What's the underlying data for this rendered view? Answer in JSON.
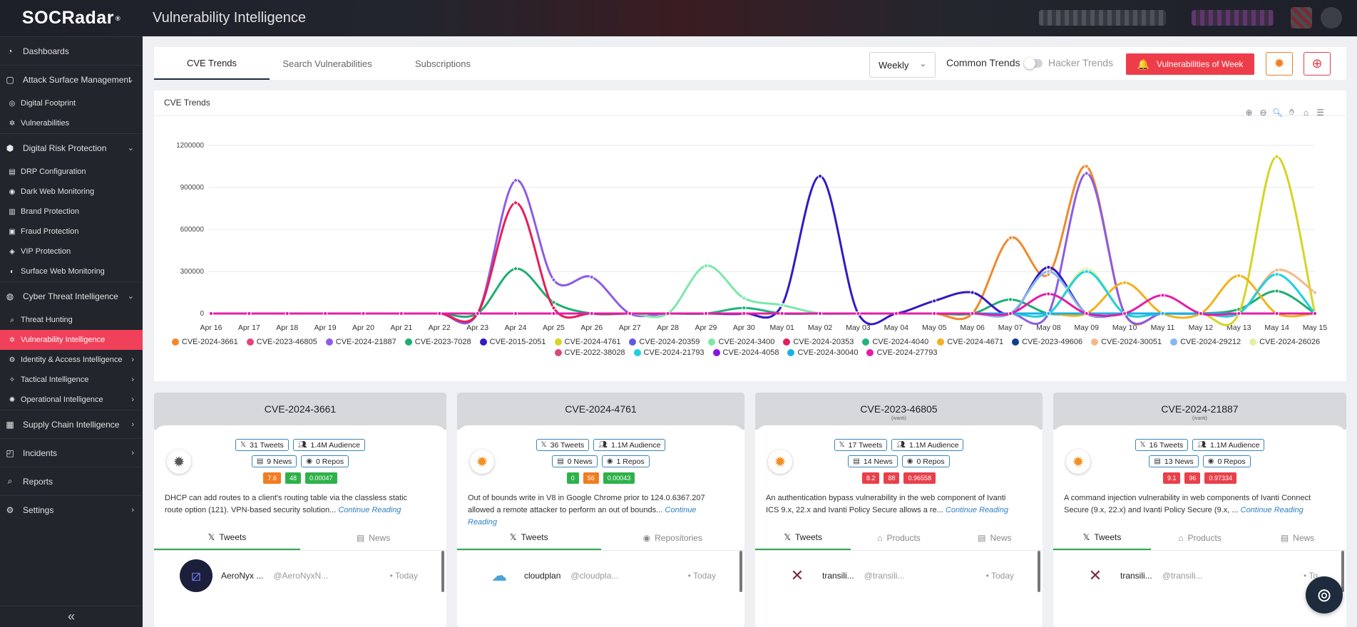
{
  "app": {
    "logo": "SOCRadar",
    "logo_mark": "®",
    "title": "Vulnerability Intelligence"
  },
  "sidebar": {
    "items": [
      {
        "label": "Dashboards",
        "icon": "dashboard-icon",
        "type": "top",
        "chevron": ""
      },
      {
        "label": "Attack Surface Management",
        "icon": "attack-surface-icon",
        "type": "top",
        "chevron": "⌄"
      },
      {
        "label": "Digital Footprint",
        "icon": "globe-icon",
        "type": "sub",
        "chevron": ""
      },
      {
        "label": "Vulnerabilities",
        "icon": "bug-icon",
        "type": "sub",
        "chevron": ""
      },
      {
        "label": "Digital Risk Protection",
        "icon": "risk-icon",
        "type": "top",
        "chevron": "⌄"
      },
      {
        "label": "DRP Configuration",
        "icon": "config-icon",
        "type": "sub",
        "chevron": ""
      },
      {
        "label": "Dark Web Monitoring",
        "icon": "dark-web-icon",
        "type": "sub",
        "chevron": ""
      },
      {
        "label": "Brand Protection",
        "icon": "brand-icon",
        "type": "sub",
        "chevron": ""
      },
      {
        "label": "Fraud Protection",
        "icon": "fraud-icon",
        "type": "sub",
        "chevron": ""
      },
      {
        "label": "VIP Protection",
        "icon": "vip-icon",
        "type": "sub",
        "chevron": ""
      },
      {
        "label": "Surface Web Monitoring",
        "icon": "surface-web-icon",
        "type": "sub",
        "chevron": ""
      },
      {
        "label": "Cyber Threat Intelligence",
        "icon": "cti-icon",
        "type": "top",
        "chevron": "⌄"
      },
      {
        "label": "Threat Hunting",
        "icon": "search-icon",
        "type": "sub",
        "chevron": ""
      },
      {
        "label": "Vulnerability Intelligence",
        "icon": "vuln-intel-icon",
        "type": "sub",
        "chevron": "",
        "active": true
      },
      {
        "label": "Identity & Access Intelligence",
        "icon": "identity-icon",
        "type": "sub",
        "chevron": "›"
      },
      {
        "label": "Tactical Intelligence",
        "icon": "tactical-icon",
        "type": "sub",
        "chevron": "›"
      },
      {
        "label": "Operational Intelligence",
        "icon": "operational-icon",
        "type": "sub",
        "chevron": "›"
      },
      {
        "label": "Supply Chain Intelligence",
        "icon": "supply-chain-icon",
        "type": "top",
        "chevron": "›"
      },
      {
        "label": "Incidents",
        "icon": "incidents-icon",
        "type": "top",
        "chevron": "›"
      },
      {
        "label": "Reports",
        "icon": "reports-icon",
        "type": "top",
        "chevron": ""
      },
      {
        "label": "Settings",
        "icon": "settings-icon",
        "type": "top",
        "chevron": "›"
      }
    ],
    "collapse": "«"
  },
  "tabs": [
    {
      "label": "CVE Trends",
      "active": true
    },
    {
      "label": "Search Vulnerabilities",
      "active": false
    },
    {
      "label": "Subscriptions",
      "active": false
    }
  ],
  "controls": {
    "period": "Weekly",
    "common_trends": "Common Trends",
    "hacker_trends": "Hacker Trends",
    "vow_button": "Vulnerabilities of Week"
  },
  "chart": {
    "title": "CVE Trends",
    "tools": [
      "zoom-in-icon",
      "zoom-out-icon",
      "magnifier-icon",
      "pan-icon",
      "home-icon",
      "menu-icon"
    ]
  },
  "chart_data": {
    "type": "line",
    "title": "CVE Trends",
    "xlabel": "",
    "ylabel": "",
    "ylim": [
      0,
      1200000
    ],
    "yticks": [
      "0",
      "300000",
      "600000",
      "900000",
      "1200000"
    ],
    "grid": true,
    "legend": "bottom",
    "categories": [
      "Apr 16",
      "Apr 17",
      "Apr 18",
      "Apr 19",
      "Apr 20",
      "Apr 21",
      "Apr 22",
      "Apr 23",
      "Apr 24",
      "Apr 25",
      "Apr 26",
      "Apr 27",
      "Apr 28",
      "Apr 29",
      "Apr 30",
      "May 01",
      "May 02",
      "May 03",
      "May 04",
      "May 05",
      "May 06",
      "May 07",
      "May 08",
      "May 09",
      "May 10",
      "May 11",
      "May 12",
      "May 13",
      "May 14",
      "May 15"
    ],
    "series": [
      {
        "name": "CVE-2024-3661",
        "color": "#f0892b",
        "values": [
          0,
          0,
          0,
          0,
          0,
          0,
          0,
          0,
          0,
          0,
          0,
          0,
          0,
          0,
          0,
          0,
          0,
          0,
          0,
          0,
          0,
          540000,
          280000,
          1050000,
          0,
          0,
          0,
          0,
          0,
          0
        ]
      },
      {
        "name": "CVE-2023-46805",
        "color": "#e8427a",
        "values": [
          0,
          0,
          0,
          0,
          0,
          0,
          0,
          0,
          0,
          0,
          0,
          0,
          0,
          0,
          0,
          0,
          0,
          0,
          0,
          0,
          0,
          0,
          0,
          0,
          0,
          0,
          0,
          0,
          0,
          0
        ]
      },
      {
        "name": "CVE-2024-21887",
        "color": "#8c5ce6",
        "values": [
          0,
          0,
          0,
          0,
          0,
          0,
          0,
          0,
          950000,
          240000,
          260000,
          0,
          0,
          0,
          0,
          0,
          0,
          0,
          0,
          0,
          0,
          0,
          0,
          1000000,
          0,
          0,
          0,
          0,
          0,
          0
        ]
      },
      {
        "name": "CVE-2023-7028",
        "color": "#1dae6e",
        "values": [
          0,
          0,
          0,
          0,
          0,
          0,
          0,
          0,
          320000,
          80000,
          0,
          0,
          0,
          0,
          0,
          0,
          0,
          0,
          0,
          0,
          0,
          100000,
          0,
          0,
          0,
          0,
          0,
          30000,
          160000,
          0
        ]
      },
      {
        "name": "CVE-2015-2051",
        "color": "#3419c4",
        "values": [
          0,
          0,
          0,
          0,
          0,
          0,
          0,
          0,
          0,
          0,
          0,
          0,
          0,
          0,
          0,
          60000,
          980000,
          0,
          0,
          90000,
          150000,
          0,
          330000,
          0,
          0,
          0,
          0,
          0,
          0,
          0
        ]
      },
      {
        "name": "CVE-2024-4761",
        "color": "#d6d426",
        "values": [
          0,
          0,
          0,
          0,
          0,
          0,
          0,
          0,
          0,
          0,
          0,
          0,
          0,
          0,
          0,
          0,
          0,
          0,
          0,
          0,
          0,
          0,
          0,
          0,
          0,
          0,
          0,
          0,
          1120000,
          0
        ]
      },
      {
        "name": "CVE-2024-20359",
        "color": "#6657e6",
        "values": [
          0,
          0,
          0,
          0,
          0,
          0,
          0,
          0,
          0,
          0,
          0,
          0,
          0,
          0,
          0,
          0,
          0,
          0,
          0,
          0,
          0,
          0,
          0,
          0,
          0,
          0,
          0,
          0,
          0,
          0
        ]
      },
      {
        "name": "CVE-2024-3400",
        "color": "#7be8a8",
        "values": [
          0,
          0,
          0,
          0,
          0,
          0,
          0,
          0,
          0,
          0,
          0,
          0,
          0,
          340000,
          110000,
          60000,
          0,
          0,
          0,
          0,
          0,
          0,
          0,
          0,
          0,
          0,
          0,
          0,
          0,
          0
        ]
      },
      {
        "name": "CVE-2024-20353",
        "color": "#e51e5a",
        "values": [
          0,
          0,
          0,
          0,
          0,
          0,
          0,
          0,
          790000,
          40000,
          0,
          0,
          0,
          0,
          0,
          0,
          0,
          0,
          0,
          0,
          0,
          0,
          0,
          0,
          0,
          0,
          0,
          0,
          0,
          0
        ]
      },
      {
        "name": "CVE-2024-4040",
        "color": "#20b27c",
        "values": [
          0,
          0,
          0,
          0,
          0,
          0,
          0,
          0,
          0,
          0,
          0,
          0,
          0,
          0,
          40000,
          0,
          0,
          0,
          0,
          0,
          0,
          0,
          0,
          0,
          0,
          0,
          0,
          0,
          0,
          0
        ]
      },
      {
        "name": "CVE-2024-4671",
        "color": "#f2b21c",
        "values": [
          0,
          0,
          0,
          0,
          0,
          0,
          0,
          0,
          0,
          0,
          0,
          0,
          0,
          0,
          0,
          0,
          0,
          0,
          0,
          0,
          0,
          0,
          0,
          0,
          220000,
          0,
          0,
          270000,
          0,
          0
        ]
      },
      {
        "name": "CVE-2023-49606",
        "color": "#123e88",
        "values": [
          0,
          0,
          0,
          0,
          0,
          0,
          0,
          0,
          0,
          0,
          0,
          0,
          0,
          0,
          0,
          0,
          0,
          0,
          0,
          0,
          0,
          0,
          0,
          0,
          0,
          0,
          0,
          0,
          0,
          0
        ]
      },
      {
        "name": "CVE-2024-30051",
        "color": "#f5b78a",
        "values": [
          0,
          0,
          0,
          0,
          0,
          0,
          0,
          0,
          0,
          0,
          0,
          0,
          0,
          0,
          0,
          0,
          0,
          0,
          0,
          0,
          0,
          0,
          0,
          0,
          0,
          0,
          0,
          0,
          310000,
          150000
        ]
      },
      {
        "name": "CVE-2024-29212",
        "color": "#86b7f0",
        "values": [
          0,
          0,
          0,
          0,
          0,
          0,
          0,
          0,
          0,
          0,
          0,
          0,
          0,
          0,
          0,
          0,
          0,
          0,
          0,
          0,
          0,
          0,
          300000,
          0,
          0,
          0,
          0,
          0,
          0,
          0
        ]
      },
      {
        "name": "CVE-2024-26026",
        "color": "#e4f0a8",
        "values": [
          0,
          0,
          0,
          0,
          0,
          0,
          0,
          0,
          0,
          0,
          0,
          0,
          0,
          0,
          0,
          0,
          0,
          0,
          0,
          0,
          0,
          0,
          0,
          320000,
          0,
          0,
          0,
          0,
          0,
          0
        ]
      },
      {
        "name": "CVE-2022-38028",
        "color": "#d9497a",
        "values": [
          0,
          0,
          0,
          0,
          0,
          0,
          0,
          0,
          0,
          0,
          0,
          0,
          0,
          0,
          0,
          0,
          0,
          0,
          0,
          0,
          0,
          0,
          0,
          0,
          0,
          0,
          0,
          0,
          0,
          0
        ]
      },
      {
        "name": "CVE-2024-21793",
        "color": "#1ed0df",
        "values": [
          0,
          0,
          0,
          0,
          0,
          0,
          0,
          0,
          0,
          0,
          0,
          0,
          0,
          0,
          0,
          0,
          0,
          0,
          0,
          0,
          0,
          0,
          0,
          300000,
          0,
          0,
          0,
          0,
          280000,
          0
        ]
      },
      {
        "name": "CVE-2024-4058",
        "color": "#8b14e0",
        "values": [
          0,
          0,
          0,
          0,
          0,
          0,
          0,
          0,
          0,
          0,
          0,
          0,
          0,
          0,
          0,
          0,
          0,
          0,
          0,
          0,
          0,
          0,
          0,
          0,
          0,
          0,
          0,
          0,
          0,
          0
        ]
      },
      {
        "name": "CVE-2024-30040",
        "color": "#1ab0e6",
        "values": [
          0,
          0,
          0,
          0,
          0,
          0,
          0,
          0,
          0,
          0,
          0,
          0,
          0,
          0,
          0,
          0,
          0,
          0,
          0,
          0,
          0,
          0,
          0,
          0,
          0,
          0,
          0,
          0,
          0,
          0
        ]
      },
      {
        "name": "CVE-2024-27793",
        "color": "#e41ca8",
        "values": [
          0,
          0,
          0,
          0,
          0,
          0,
          0,
          0,
          0,
          0,
          0,
          0,
          0,
          0,
          0,
          0,
          0,
          0,
          0,
          0,
          0,
          0,
          140000,
          0,
          0,
          130000,
          0,
          0,
          0,
          0
        ]
      }
    ]
  },
  "cards": [
    {
      "title": "CVE-2024-3661",
      "subtitle": "",
      "bug_color": "#555555",
      "tweets": "31 Tweets",
      "audience": "1.4M Audience",
      "news": "9 News",
      "repos": "0 Repos",
      "scores": [
        {
          "v": "7.6",
          "c": "#f07d22"
        },
        {
          "v": "48",
          "c": "#2fb14a"
        },
        {
          "v": "0.00047",
          "c": "#2fb14a"
        }
      ],
      "description": "DHCP can add routes to a client's routing table via the classless static route option (121). VPN-based security solution...",
      "more": "Continue Reading",
      "tabs": [
        {
          "label": "Tweets",
          "icon": "x-icon",
          "active": true
        },
        {
          "label": "News",
          "icon": "news-icon",
          "active": false
        }
      ],
      "tweet": {
        "name": "AeroNyx ...",
        "handle": "@AeroNyxN...",
        "time": "• Today",
        "avatar": "aeronyx-avatar"
      }
    },
    {
      "title": "CVE-2024-4761",
      "subtitle": "",
      "bug_color": "#f39020",
      "tweets": "36 Tweets",
      "audience": "1.1M Audience",
      "news": "0 News",
      "repos": "1 Repos",
      "scores": [
        {
          "v": "0",
          "c": "#2fb14a"
        },
        {
          "v": "56",
          "c": "#f07d22"
        },
        {
          "v": "0.00043",
          "c": "#2fb14a"
        }
      ],
      "description": "Out of bounds write in V8 in Google Chrome prior to 124.0.6367.207 allowed a remote attacker to perform an out of bounds...",
      "more": "Continue Reading",
      "tabs": [
        {
          "label": "Tweets",
          "icon": "x-icon",
          "active": true
        },
        {
          "label": "Repositories",
          "icon": "github-icon",
          "active": false
        }
      ],
      "tweet": {
        "name": "cloudplan",
        "handle": "@cloudpla...",
        "time": "• Today",
        "avatar": "cloud-avatar"
      }
    },
    {
      "title": "CVE-2023-46805",
      "subtitle": "(ivanti)",
      "bug_color": "#f39020",
      "tweets": "17 Tweets",
      "audience": "1.1M Audience",
      "news": "14 News",
      "repos": "0 Repos",
      "scores": [
        {
          "v": "8.2",
          "c": "#e8404a"
        },
        {
          "v": "88",
          "c": "#e8404a"
        },
        {
          "v": "0.96558",
          "c": "#e8404a"
        }
      ],
      "description": "An authentication bypass vulnerability in the web component of Ivanti ICS 9.x, 22.x and Ivanti Policy Secure allows a re...",
      "more": "Continue Reading",
      "tabs": [
        {
          "label": "Tweets",
          "icon": "x-icon",
          "active": true
        },
        {
          "label": "Products",
          "icon": "tag-icon",
          "active": false
        },
        {
          "label": "News",
          "icon": "news-icon",
          "active": false
        }
      ],
      "tweet": {
        "name": "transili...",
        "handle": "@transili...",
        "time": "• Today",
        "avatar": "transilience-avatar"
      }
    },
    {
      "title": "CVE-2024-21887",
      "subtitle": "(ivanti)",
      "bug_color": "#f39020",
      "tweets": "16 Tweets",
      "audience": "1.1M Audience",
      "news": "13 News",
      "repos": "0 Repos",
      "scores": [
        {
          "v": "9.1",
          "c": "#e8404a"
        },
        {
          "v": "96",
          "c": "#e8404a"
        },
        {
          "v": "0.97334",
          "c": "#e8404a"
        }
      ],
      "description": "A command injection vulnerability in web components of Ivanti Connect Secure (9.x, 22.x) and Ivanti Policy Secure (9.x, ...",
      "more": "Continue Reading",
      "tabs": [
        {
          "label": "Tweets",
          "icon": "x-icon",
          "active": true
        },
        {
          "label": "Products",
          "icon": "tag-icon",
          "active": false
        },
        {
          "label": "News",
          "icon": "news-icon",
          "active": false
        }
      ],
      "tweet": {
        "name": "transili...",
        "handle": "@transili...",
        "time": "• To",
        "avatar": "transilience-avatar"
      }
    }
  ],
  "help": "help-lifebuoy-icon"
}
